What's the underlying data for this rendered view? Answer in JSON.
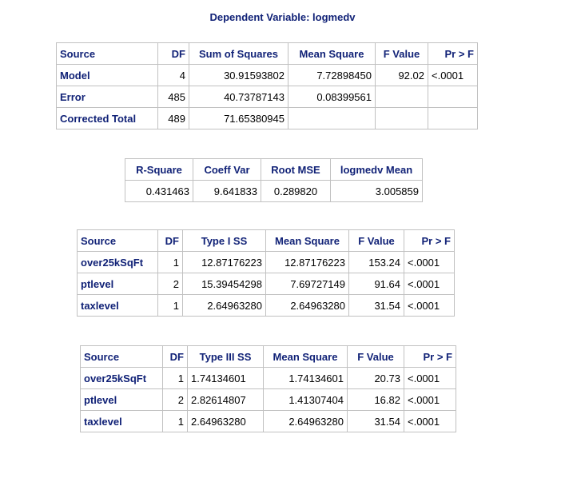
{
  "title": "Dependent Variable: logmedv",
  "anova": {
    "headers": [
      "Source",
      "DF",
      "Sum of Squares",
      "Mean Square",
      "F Value",
      "Pr > F"
    ],
    "rows": [
      {
        "source": "Model",
        "df": "4",
        "ss": "30.91593802",
        "ms": "7.72898450",
        "f": "92.02",
        "p": "<.0001"
      },
      {
        "source": "Error",
        "df": "485",
        "ss": "40.73787143",
        "ms": "0.08399561",
        "f": "",
        "p": ""
      },
      {
        "source": "Corrected Total",
        "df": "489",
        "ss": "71.65380945",
        "ms": "",
        "f": "",
        "p": ""
      }
    ]
  },
  "fit": {
    "headers": [
      "R-Square",
      "Coeff Var",
      "Root MSE",
      "logmedv Mean"
    ],
    "values": [
      "0.431463",
      "9.641833",
      "0.289820",
      "3.005859"
    ]
  },
  "type1": {
    "headers": [
      "Source",
      "DF",
      "Type I SS",
      "Mean Square",
      "F Value",
      "Pr > F"
    ],
    "rows": [
      {
        "source": "over25kSqFt",
        "df": "1",
        "ss": "12.87176223",
        "ms": "12.87176223",
        "f": "153.24",
        "p": "<.0001"
      },
      {
        "source": "ptlevel",
        "df": "2",
        "ss": "15.39454298",
        "ms": "7.69727149",
        "f": "91.64",
        "p": "<.0001"
      },
      {
        "source": "taxlevel",
        "df": "1",
        "ss": "2.64963280",
        "ms": "2.64963280",
        "f": "31.54",
        "p": "<.0001"
      }
    ]
  },
  "type3": {
    "headers": [
      "Source",
      "DF",
      "Type III SS",
      "Mean Square",
      "F Value",
      "Pr > F"
    ],
    "rows": [
      {
        "source": "over25kSqFt",
        "df": "1",
        "ss": "1.74134601",
        "ms": "1.74134601",
        "f": "20.73",
        "p": "<.0001"
      },
      {
        "source": "ptlevel",
        "df": "2",
        "ss": "2.82614807",
        "ms": "1.41307404",
        "f": "16.82",
        "p": "<.0001"
      },
      {
        "source": "taxlevel",
        "df": "1",
        "ss": "2.64963280",
        "ms": "2.64963280",
        "f": "31.54",
        "p": "<.0001"
      }
    ]
  }
}
